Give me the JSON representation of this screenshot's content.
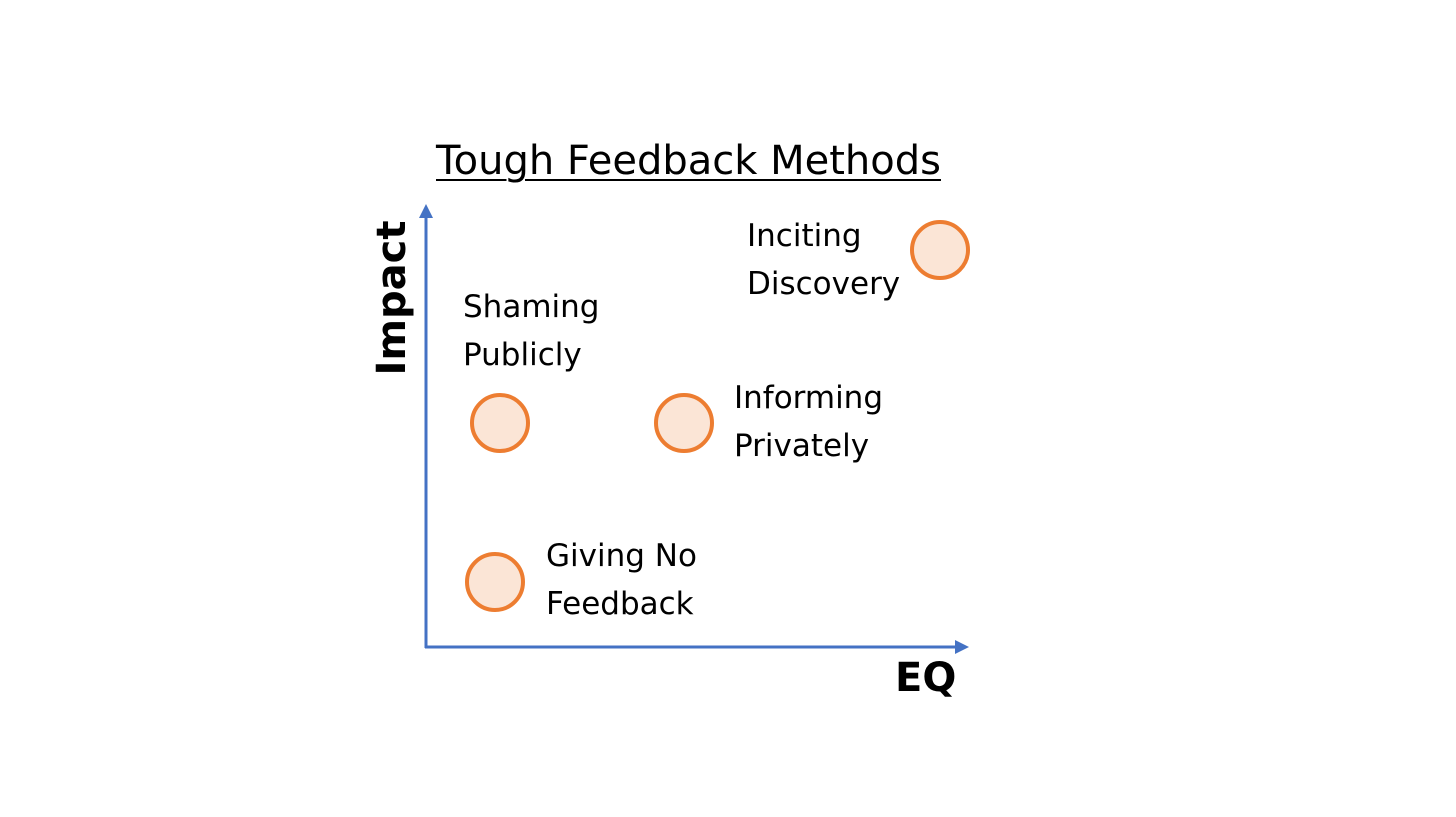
{
  "title": "Tough Feedback Methods",
  "axes": {
    "x_label": "EQ",
    "y_label": "Impact"
  },
  "colors": {
    "axis": "#4472c4",
    "point_fill": "#fbe5d6",
    "point_stroke": "#ed7d31",
    "text": "#000000"
  },
  "methods": [
    {
      "label": "Inciting\nDiscovery"
    },
    {
      "label": "Shaming\nPublicly"
    },
    {
      "label": "Informing\nPrivately"
    },
    {
      "label": "Giving No\nFeedback"
    }
  ]
}
